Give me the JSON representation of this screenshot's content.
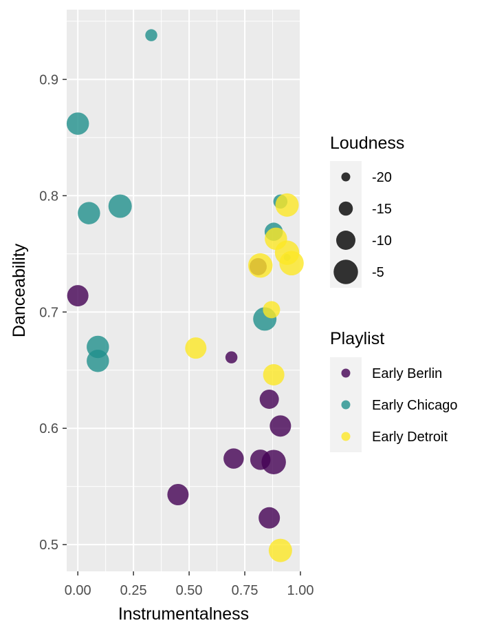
{
  "chart_data": {
    "type": "scatter",
    "xlabel": "Instrumentalness",
    "ylabel": "Danceability",
    "xlim": [
      -0.05,
      1.0
    ],
    "ylim": [
      0.477,
      0.96
    ],
    "x_ticks": [
      0.0,
      0.25,
      0.5,
      0.75,
      1.0
    ],
    "x_tick_labels": [
      "0.00",
      "0.25",
      "0.50",
      "0.75",
      "1.00"
    ],
    "y_ticks": [
      0.5,
      0.6,
      0.7,
      0.8,
      0.9
    ],
    "y_tick_labels": [
      "0.5",
      "0.6",
      "0.7",
      "0.8",
      "0.9"
    ],
    "grid": true,
    "legend_position": "right",
    "size_legend": {
      "title": "Loudness",
      "entries": [
        {
          "label": "-20",
          "value": -20
        },
        {
          "label": "-15",
          "value": -15
        },
        {
          "label": "-10",
          "value": -10
        },
        {
          "label": "-5",
          "value": -5
        }
      ]
    },
    "color_legend": {
      "title": "Playlist",
      "entries": [
        {
          "label": "Early Berlin",
          "color": "#440154"
        },
        {
          "label": "Early Chicago",
          "color": "#21908c"
        },
        {
          "label": "Early Detroit",
          "color": "#fde725"
        }
      ]
    },
    "series": [
      {
        "name": "Early Berlin",
        "color": "#440154",
        "points": [
          {
            "x": 0.0,
            "y": 0.714,
            "loudness": -8
          },
          {
            "x": 0.69,
            "y": 0.661,
            "loudness": -17
          },
          {
            "x": 0.86,
            "y": 0.625,
            "loudness": -10
          },
          {
            "x": 0.91,
            "y": 0.602,
            "loudness": -8
          },
          {
            "x": 0.7,
            "y": 0.574,
            "loudness": -9
          },
          {
            "x": 0.82,
            "y": 0.573,
            "loudness": -9
          },
          {
            "x": 0.88,
            "y": 0.571,
            "loudness": -5
          },
          {
            "x": 0.45,
            "y": 0.543,
            "loudness": -8
          },
          {
            "x": 0.86,
            "y": 0.523,
            "loudness": -8
          },
          {
            "x": 0.81,
            "y": 0.739,
            "loudness": -12
          }
        ]
      },
      {
        "name": "Early Chicago",
        "color": "#21908c",
        "points": [
          {
            "x": 0.33,
            "y": 0.938,
            "loudness": -17
          },
          {
            "x": 0.0,
            "y": 0.862,
            "loudness": -7
          },
          {
            "x": 0.05,
            "y": 0.785,
            "loudness": -7
          },
          {
            "x": 0.19,
            "y": 0.791,
            "loudness": -6
          },
          {
            "x": 0.09,
            "y": 0.67,
            "loudness": -7
          },
          {
            "x": 0.09,
            "y": 0.658,
            "loudness": -7
          },
          {
            "x": 0.84,
            "y": 0.694,
            "loudness": -6
          },
          {
            "x": 0.88,
            "y": 0.769,
            "loudness": -11
          },
          {
            "x": 0.91,
            "y": 0.795,
            "loudness": -15
          },
          {
            "x": 0.94,
            "y": 0.747,
            "loudness": -22
          }
        ]
      },
      {
        "name": "Early Detroit",
        "color": "#fde725",
        "points": [
          {
            "x": 0.94,
            "y": 0.792,
            "loudness": -6
          },
          {
            "x": 0.89,
            "y": 0.763,
            "loudness": -7
          },
          {
            "x": 0.94,
            "y": 0.751,
            "loudness": -5
          },
          {
            "x": 0.82,
            "y": 0.74,
            "loudness": -5
          },
          {
            "x": 0.96,
            "y": 0.742,
            "loudness": -5
          },
          {
            "x": 0.87,
            "y": 0.702,
            "loudness": -12
          },
          {
            "x": 0.53,
            "y": 0.669,
            "loudness": -8
          },
          {
            "x": 0.88,
            "y": 0.646,
            "loudness": -8
          },
          {
            "x": 0.91,
            "y": 0.495,
            "loudness": -6
          }
        ]
      }
    ]
  }
}
